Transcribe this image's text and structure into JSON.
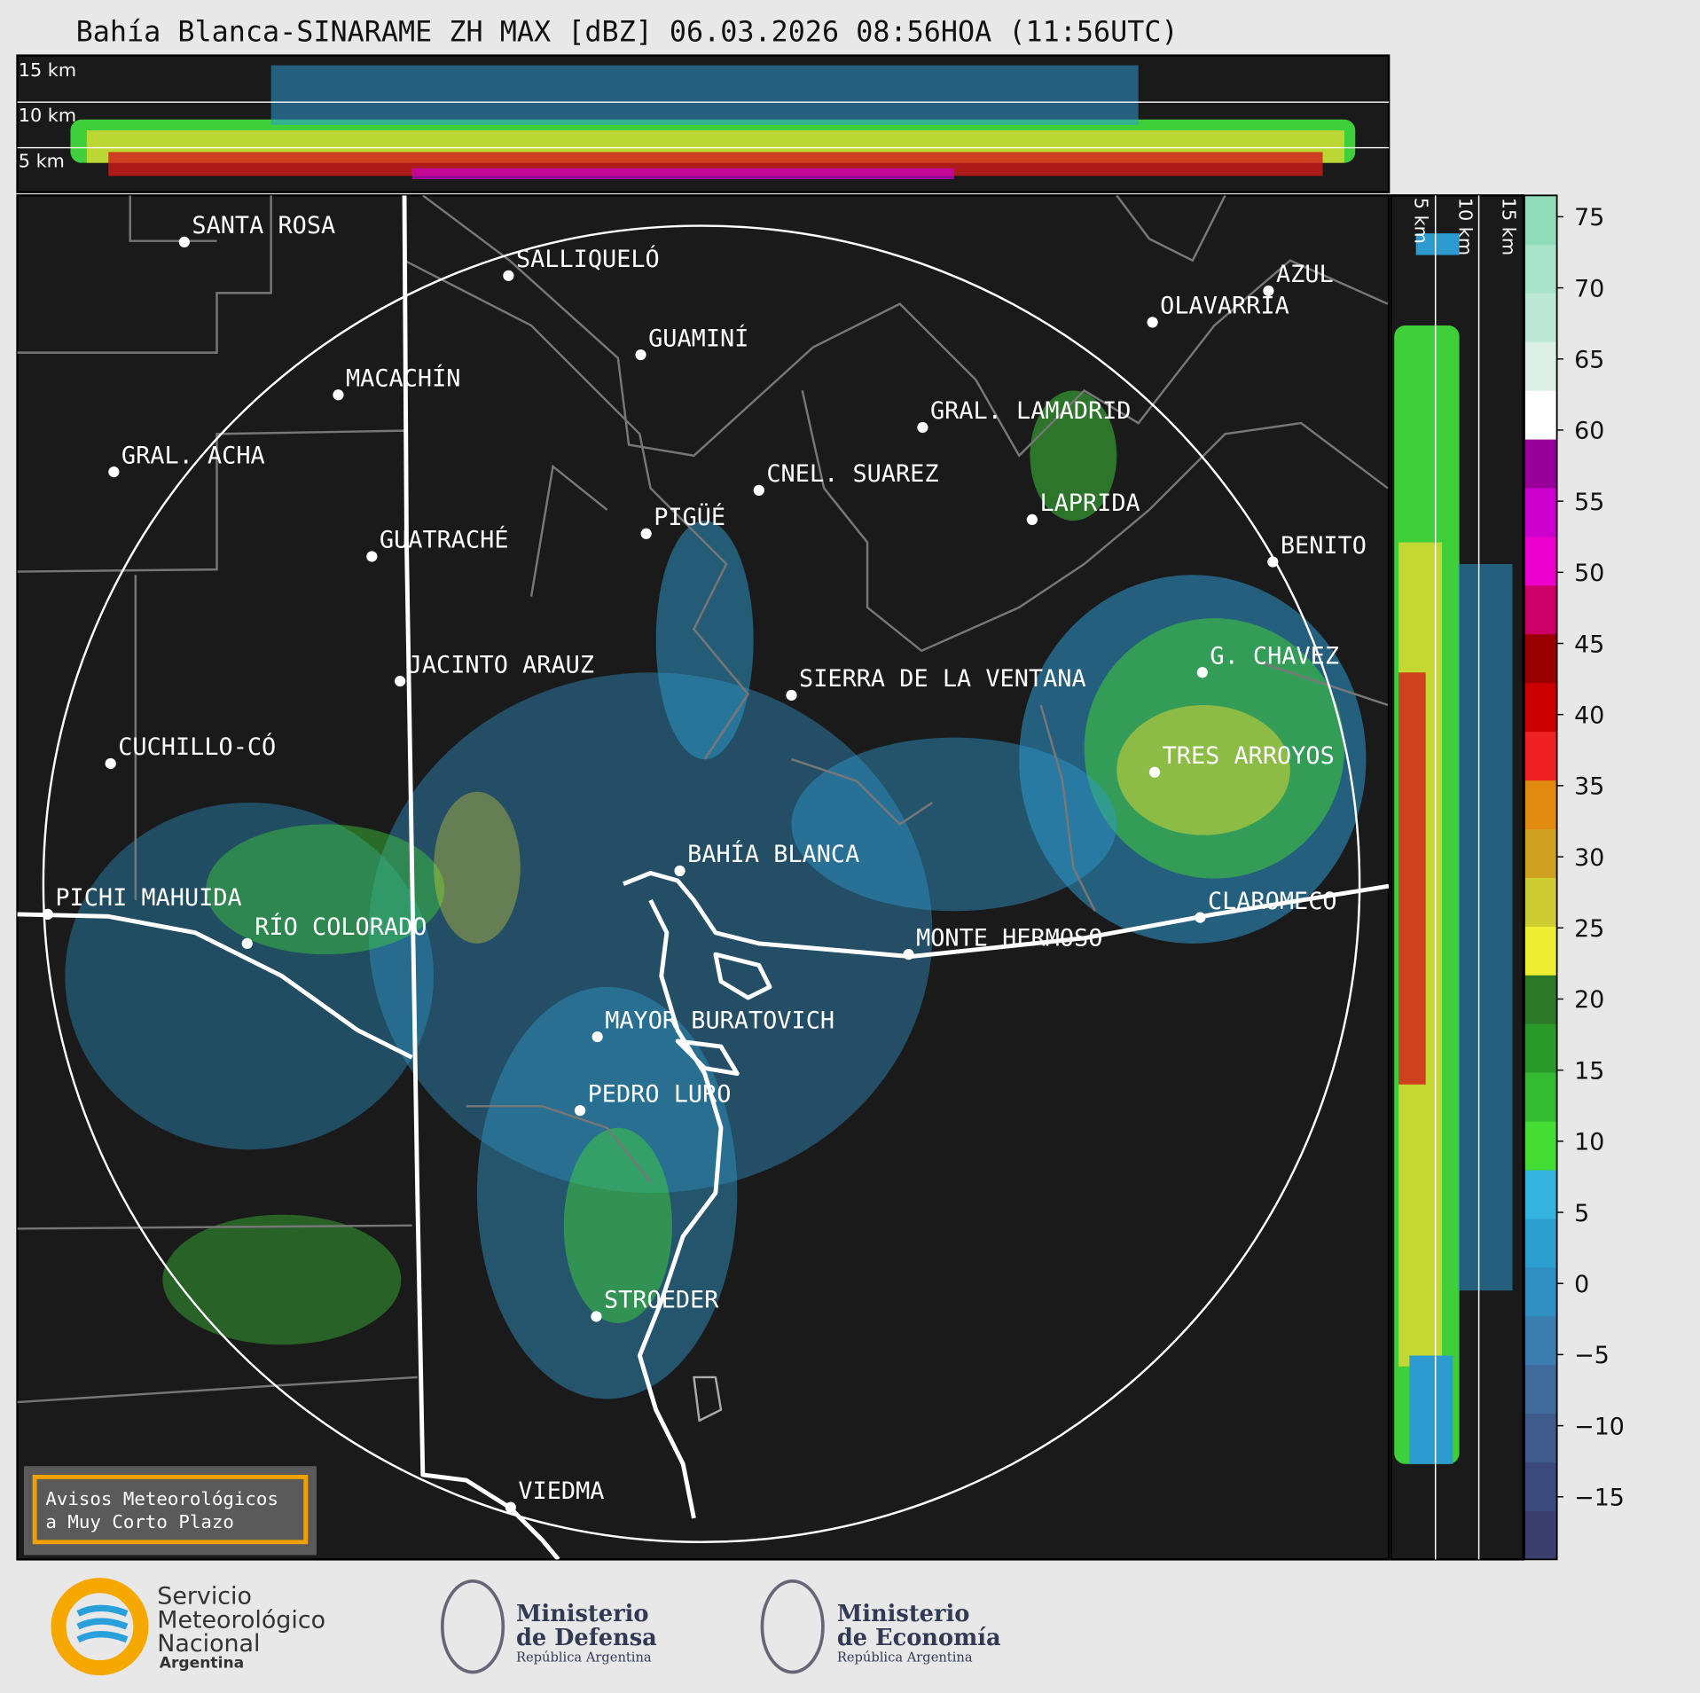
{
  "header": {
    "title": "Bahía Blanca-SINARAME ZH MAX [dBZ] 06.03.2026 08:56HOA (11:56UTC)"
  },
  "top_profile": {
    "labels": [
      "15 km",
      "10 km",
      "5 km"
    ]
  },
  "side_profile": {
    "labels": [
      "5 km",
      "10 km",
      "15 km"
    ]
  },
  "map": {
    "places": [
      "SANTA ROSA",
      "SALLIQUELÓ",
      "GUAMINÍ",
      "MACACHÍN",
      "GRAL. ACHA",
      "AZUL",
      "OLAVARRÍA",
      "GRAL. LAMADRID",
      "CNEL. SUAREZ",
      "LAPRIDA",
      "PIGÜÉ",
      "GUATRACHÉ",
      "BENITO",
      "G. CHAVEZ",
      "JACINTO ARAUZ",
      "SIERRA DE LA VENTANA",
      "CUCHILLO-CÓ",
      "TRES ARROYOS",
      "BAHÍA BLANCA",
      "PICHI MAHUIDA",
      "CLAROMECO",
      "RÍO COLORADO",
      "MONTE HERMOSO",
      "MAYOR BURATOVICH",
      "PEDRO LURO",
      "STROEDER",
      "VIEDMA"
    ]
  },
  "banner": {
    "lines": [
      "Avisos Meteorológicos",
      "a Muy Corto Plazo"
    ]
  },
  "colorbar": {
    "lim": [
      -19.4,
      76.5
    ],
    "ticks": [
      75,
      70,
      65,
      60,
      55,
      50,
      45,
      40,
      35,
      30,
      25,
      20,
      15,
      10,
      5,
      0,
      {
        "value": -5,
        "label": "−5"
      },
      {
        "value": -10,
        "label": "−10"
      },
      {
        "value": -15,
        "label": "−15"
      }
    ],
    "colors": [
      "#3a3f6b",
      "#3b4a7a",
      "#3d5a8a",
      "#3f6a9a",
      "#3a7fb0",
      "#2e8fc0",
      "#2a9fd0",
      "#33b5e0",
      "#44dd33",
      "#33bb33",
      "#2a9a2a",
      "#2a7a2a",
      "#eeee33",
      "#cccc33",
      "#d0a020",
      "#e08a10",
      "#ee2222",
      "#cc0000",
      "#990000",
      "#cc0066",
      "#ee00cc",
      "#cc00cc",
      "#990099",
      "#ffffff",
      "#ddf0e6",
      "#bde8d5",
      "#a8e2c8",
      "#8fdcba"
    ]
  },
  "logos": {
    "smn": [
      "Servicio",
      "Meteorológico",
      "Nacional",
      "Argentina"
    ],
    "defensa": [
      "Ministerio",
      "de Defensa",
      "República Argentina"
    ],
    "economia": [
      "Ministerio",
      "de Economía",
      "República Argentina"
    ]
  }
}
